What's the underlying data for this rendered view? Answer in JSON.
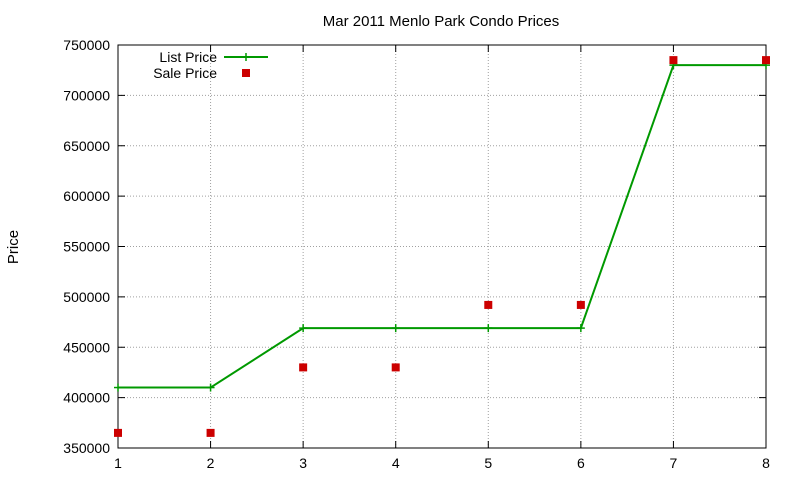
{
  "chart_data": {
    "type": "line",
    "title": "Mar 2011 Menlo Park Condo Prices",
    "xlabel": "",
    "ylabel": "Price",
    "xlim": [
      1,
      8
    ],
    "ylim": [
      350000,
      750000
    ],
    "x_ticks": [
      "1",
      "2",
      "3",
      "4",
      "5",
      "6",
      "7",
      "8"
    ],
    "y_ticks": [
      "350000",
      "400000",
      "450000",
      "500000",
      "550000",
      "600000",
      "650000",
      "700000",
      "750000"
    ],
    "grid": true,
    "legend_position": "top-left",
    "series": [
      {
        "name": "List Price",
        "style": "linespoints",
        "color": "#009900",
        "x": [
          1,
          2,
          3,
          4,
          5,
          6,
          7,
          8
        ],
        "y": [
          410000,
          410000,
          469000,
          469000,
          469000,
          469000,
          730000,
          730000
        ]
      },
      {
        "name": "Sale Price",
        "style": "points",
        "color": "#cc0000",
        "x": [
          1,
          2,
          3,
          4,
          5,
          6,
          7,
          8
        ],
        "y": [
          365000,
          365000,
          430000,
          430000,
          492000,
          492000,
          735000,
          735000
        ]
      }
    ]
  }
}
